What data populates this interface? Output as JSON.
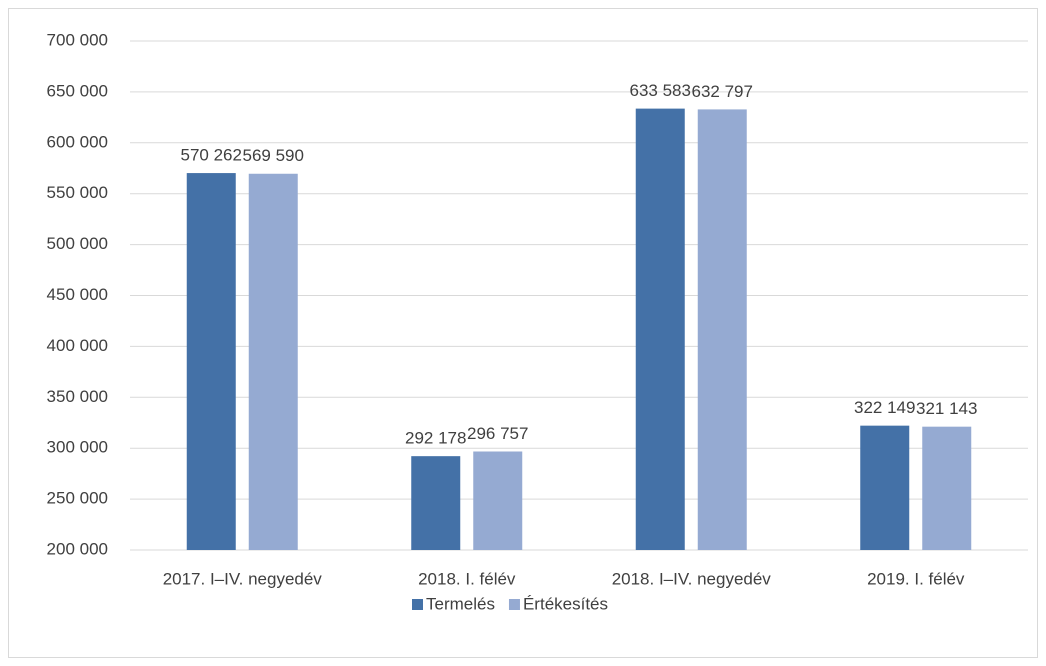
{
  "chart_data": {
    "type": "bar",
    "categories": [
      "2017. I–IV. negyedév",
      "2018. I. félév",
      "2018. I–IV. negyedév",
      "2019. I. félév"
    ],
    "series": [
      {
        "name": "Termelés",
        "color": "#4471a7",
        "values": [
          570262,
          292178,
          633583,
          322149
        ],
        "value_labels": [
          "570 262",
          "292 178",
          "633 583",
          "322 149"
        ]
      },
      {
        "name": "Értékesítés",
        "color": "#95aad2",
        "values": [
          569590,
          296757,
          632797,
          321143
        ],
        "value_labels": [
          "569 590",
          "296 757",
          "632 797",
          "321 143"
        ]
      }
    ],
    "ylim": [
      200000,
      700000
    ],
    "yticks": [
      {
        "value": 200000,
        "label": "200 000"
      },
      {
        "value": 250000,
        "label": "250 000"
      },
      {
        "value": 300000,
        "label": "300 000"
      },
      {
        "value": 350000,
        "label": "350 000"
      },
      {
        "value": 400000,
        "label": "400 000"
      },
      {
        "value": 450000,
        "label": "450 000"
      },
      {
        "value": 500000,
        "label": "500 000"
      },
      {
        "value": 550000,
        "label": "550 000"
      },
      {
        "value": 600000,
        "label": "600 000"
      },
      {
        "value": 650000,
        "label": "650 000"
      },
      {
        "value": 700000,
        "label": "700 000"
      }
    ],
    "grid": true,
    "legend": "bottom"
  }
}
